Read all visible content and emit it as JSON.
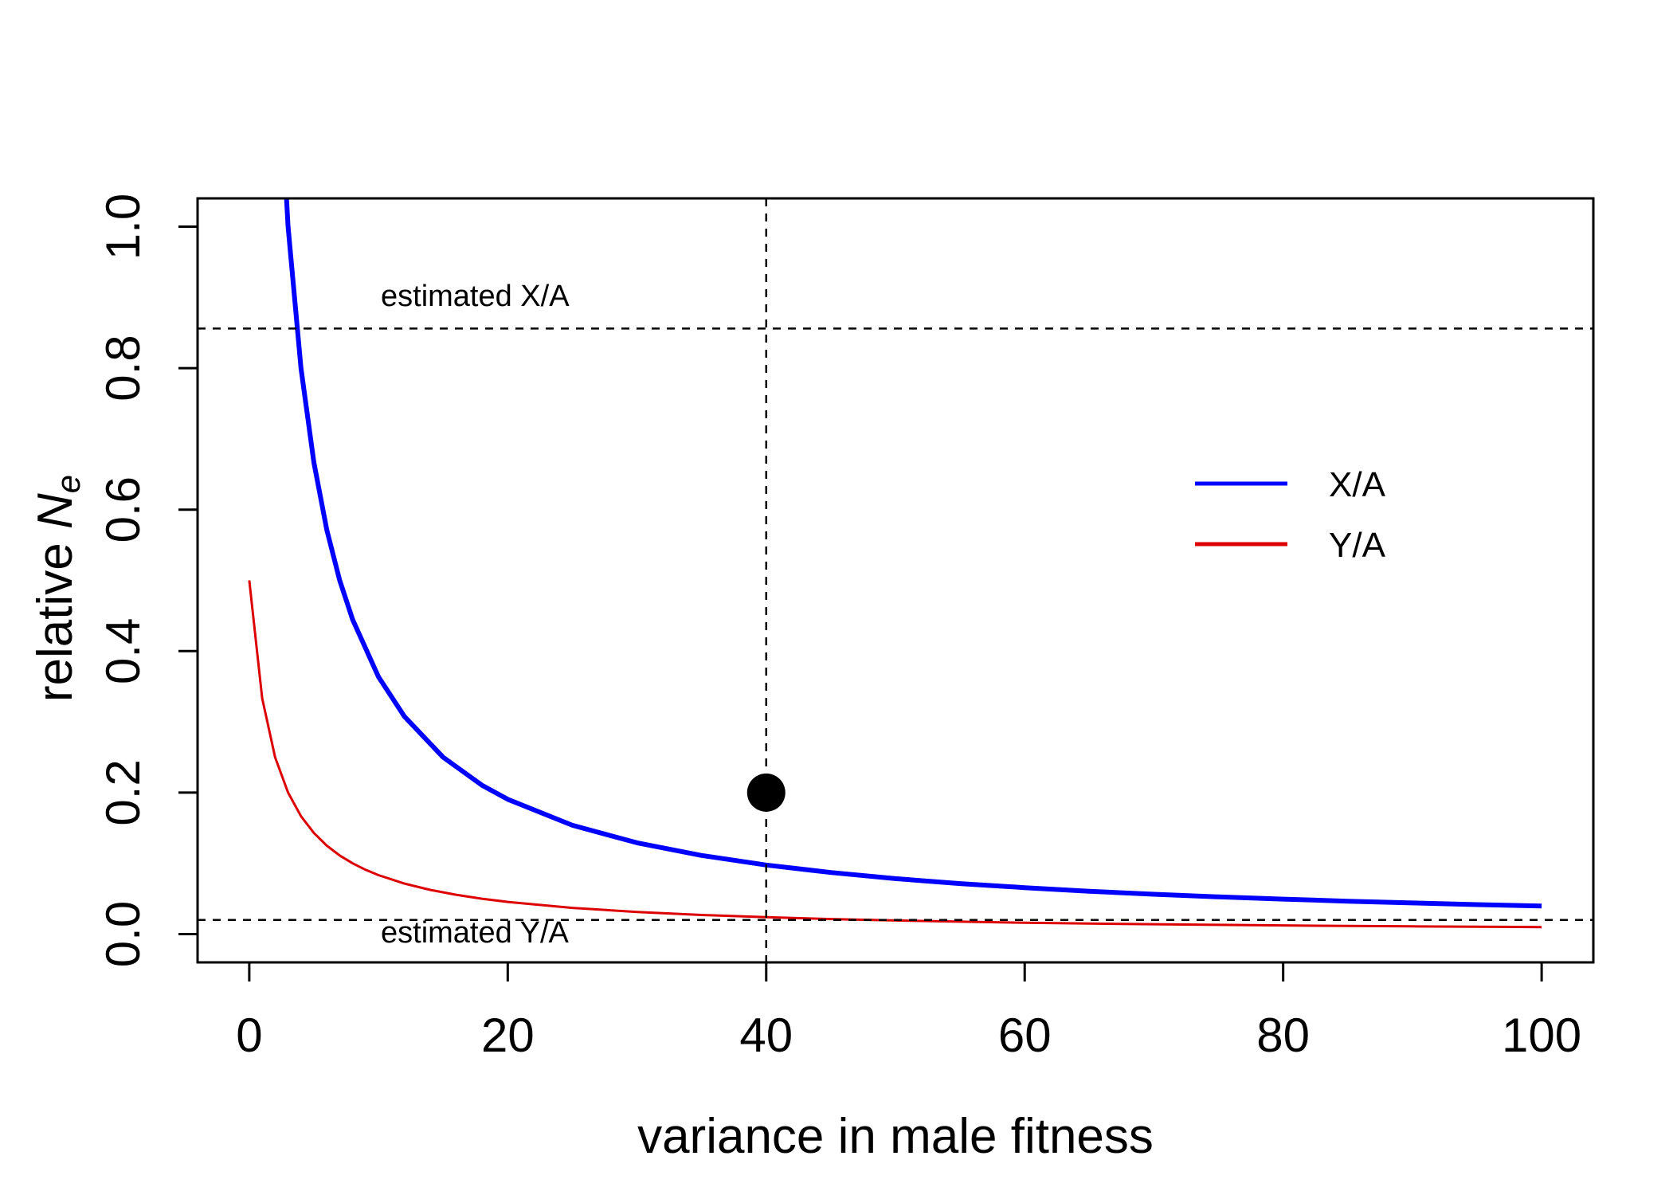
{
  "chart_data": {
    "type": "line",
    "xlabel": "variance in male fitness",
    "ylabel": {
      "prefix": "relative ",
      "symbol": "N",
      "subscript": "e"
    },
    "xlim": [
      -4,
      104
    ],
    "ylim": [
      -0.04,
      1.04
    ],
    "x_ticks": [
      0,
      20,
      40,
      60,
      80,
      100
    ],
    "y_ticks": [
      0.0,
      0.2,
      0.4,
      0.6,
      0.8,
      1.0
    ],
    "x_tick_labels": [
      "0",
      "20",
      "40",
      "60",
      "80",
      "100"
    ],
    "y_tick_labels": [
      "0.0",
      "0.2",
      "0.4",
      "0.6",
      "0.8",
      "1.0"
    ],
    "grid": false,
    "legend_position": "right",
    "series": [
      {
        "name": "X/A",
        "color": "#0000ff",
        "x": [
          2,
          3,
          4,
          5,
          6,
          7,
          8,
          10,
          12,
          15,
          18,
          20,
          25,
          30,
          35,
          40,
          45,
          50,
          55,
          60,
          65,
          70,
          75,
          80,
          85,
          90,
          95,
          100
        ],
        "y": [
          1.33,
          1.0,
          0.8,
          0.6667,
          0.5714,
          0.5,
          0.4444,
          0.3636,
          0.3077,
          0.25,
          0.2105,
          0.1905,
          0.1538,
          0.129,
          0.1111,
          0.0976,
          0.087,
          0.0784,
          0.0714,
          0.0656,
          0.0606,
          0.0563,
          0.0526,
          0.0494,
          0.0465,
          0.044,
          0.0417,
          0.0396
        ]
      },
      {
        "name": "Y/A",
        "color": "#dd0000",
        "x": [
          0,
          1,
          2,
          3,
          4,
          5,
          6,
          7,
          8,
          9,
          10,
          12,
          14,
          16,
          18,
          20,
          25,
          30,
          35,
          40,
          45,
          50,
          55,
          60,
          65,
          70,
          75,
          80,
          85,
          90,
          95,
          100
        ],
        "y": [
          0.5,
          0.3333,
          0.25,
          0.2,
          0.1667,
          0.1429,
          0.125,
          0.1111,
          0.1,
          0.0909,
          0.0833,
          0.0714,
          0.0625,
          0.0556,
          0.05,
          0.0455,
          0.037,
          0.0313,
          0.027,
          0.0238,
          0.0213,
          0.0192,
          0.0175,
          0.0161,
          0.0149,
          0.0139,
          0.013,
          0.0122,
          0.0115,
          0.0109,
          0.0104,
          0.0099
        ]
      }
    ],
    "reference_lines": {
      "horizontal": [
        {
          "y": 0.856,
          "label": "estimated X/A"
        },
        {
          "y": 0.02,
          "label": "estimated Y/A"
        }
      ],
      "vertical": [
        {
          "x": 40
        }
      ]
    },
    "highlight_point": {
      "x": 40,
      "y": 0.2
    }
  }
}
